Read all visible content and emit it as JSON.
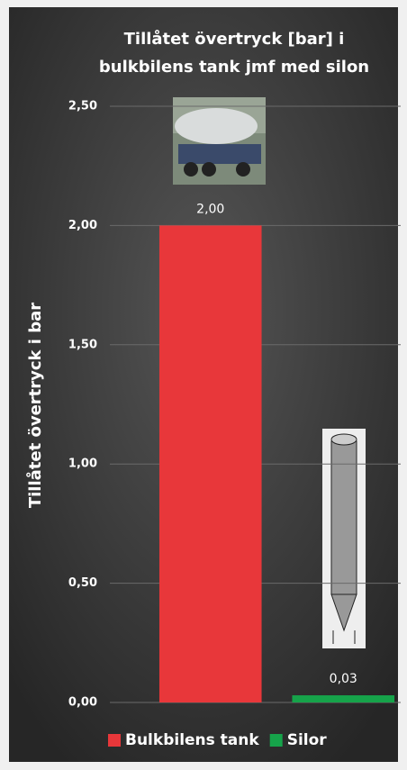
{
  "chart_data": {
    "type": "bar",
    "title": "Tillåtet övertryck [bar] i bulkbilens tank jmf med silon",
    "y_label": "Tillåtet övertryck  i bar",
    "categories": [
      null,
      null
    ],
    "series": [
      {
        "name": "Bulkbilens tank",
        "color": "#e8373a",
        "values": [
          2.0,
          null
        ],
        "value_labels": [
          "2,00",
          null
        ]
      },
      {
        "name": "Silor",
        "color": "#16a34a",
        "values": [
          null,
          0.03
        ],
        "value_labels": [
          null,
          "0,03"
        ]
      }
    ],
    "ylim": [
      0,
      2.5
    ],
    "yticks": [
      {
        "value": 0,
        "label": "0,00"
      },
      {
        "value": 0.5,
        "label": "0,50"
      },
      {
        "value": 1,
        "label": "1,00"
      },
      {
        "value": 1.5,
        "label": "1,50"
      },
      {
        "value": 2,
        "label": "2,00"
      },
      {
        "value": 2.5,
        "label": "2,50"
      }
    ],
    "grid": true,
    "legend": "bottom"
  }
}
